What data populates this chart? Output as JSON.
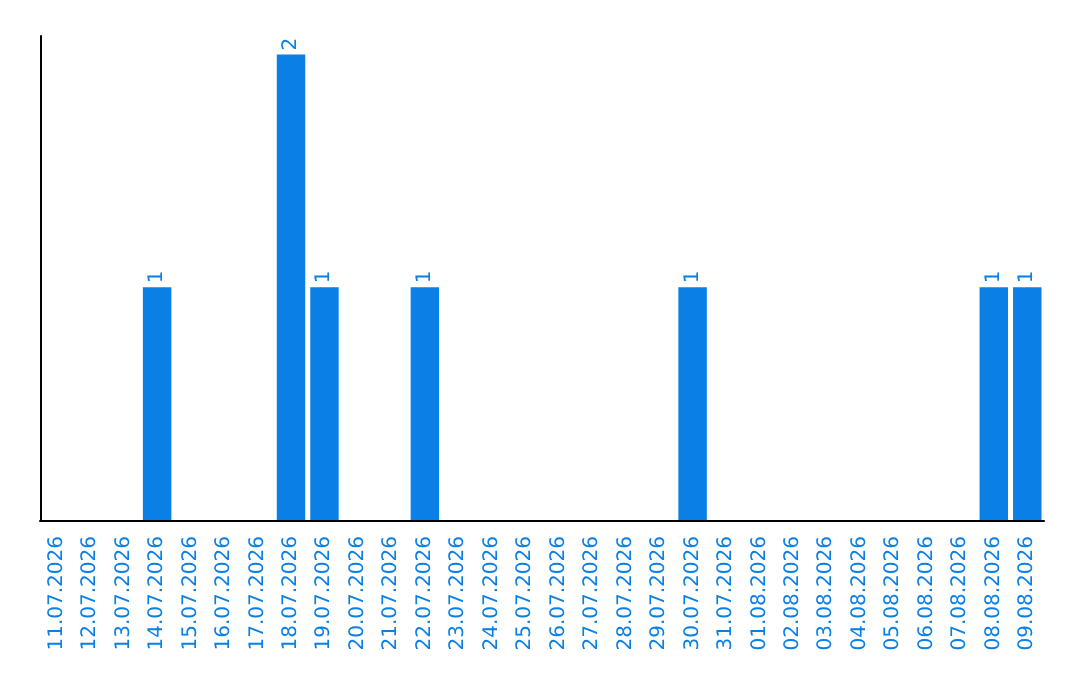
{
  "chart_data": {
    "type": "bar",
    "categories": [
      "11.07.2026",
      "12.07.2026",
      "13.07.2026",
      "14.07.2026",
      "15.07.2026",
      "16.07.2026",
      "17.07.2026",
      "18.07.2026",
      "19.07.2026",
      "20.07.2026",
      "21.07.2026",
      "22.07.2026",
      "23.07.2026",
      "24.07.2026",
      "25.07.2026",
      "26.07.2026",
      "27.07.2026",
      "28.07.2026",
      "29.07.2026",
      "30.07.2026",
      "31.07.2026",
      "01.08.2026",
      "02.08.2026",
      "03.08.2026",
      "04.08.2026",
      "05.08.2026",
      "06.08.2026",
      "07.08.2026",
      "08.08.2026",
      "09.08.2026"
    ],
    "values": [
      0,
      0,
      0,
      1,
      0,
      0,
      0,
      2,
      1,
      0,
      0,
      1,
      0,
      0,
      0,
      0,
      0,
      0,
      0,
      1,
      0,
      0,
      0,
      0,
      0,
      0,
      0,
      0,
      1,
      1
    ],
    "value_labels": [
      null,
      null,
      null,
      "1",
      null,
      null,
      null,
      "2",
      "1",
      null,
      null,
      "1",
      null,
      null,
      null,
      null,
      null,
      null,
      null,
      "1",
      null,
      null,
      null,
      null,
      null,
      null,
      null,
      null,
      "1",
      "1"
    ],
    "color": "#0a7fe6",
    "tick_labels": "x",
    "grid": false
  }
}
